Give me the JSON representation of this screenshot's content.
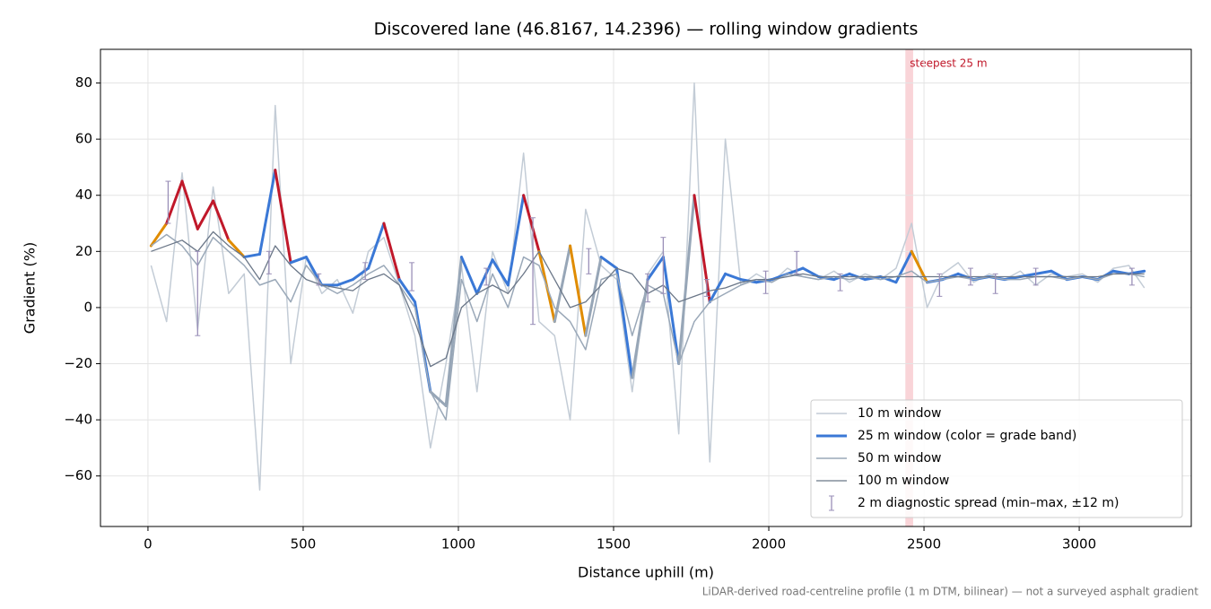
{
  "chart_data": {
    "type": "line",
    "title": "Discovered lane (46.8167, 14.2396) — rolling window gradients",
    "xlabel": "Distance uphill (m)",
    "ylabel": "Gradient (%)",
    "footnote": "LiDAR-derived road-centreline profile (1 m DTM, bilinear) — not a surveyed asphalt gradient",
    "xlim": [
      -153,
      3361
    ],
    "ylim": [
      -78,
      92
    ],
    "xticks": [
      0,
      500,
      1000,
      1500,
      2000,
      2500,
      3000
    ],
    "yticks": [
      {
        "value": -60,
        "label": "−60"
      },
      {
        "value": -40,
        "label": "−40"
      },
      {
        "value": -20,
        "label": "−20"
      },
      0,
      20,
      40,
      60,
      80
    ],
    "grid": true,
    "legend": "lower right",
    "highlight": {
      "label": "steepest 25 m",
      "x": [
        2440,
        2465
      ],
      "color": "#f2a0a8"
    },
    "x": [
      10,
      60,
      110,
      160,
      210,
      260,
      310,
      360,
      410,
      460,
      510,
      560,
      610,
      660,
      710,
      760,
      810,
      860,
      910,
      960,
      1010,
      1060,
      1110,
      1160,
      1210,
      1260,
      1310,
      1360,
      1410,
      1460,
      1510,
      1560,
      1610,
      1660,
      1710,
      1760,
      1810,
      1860,
      1910,
      1960,
      2010,
      2060,
      2110,
      2160,
      2210,
      2260,
      2310,
      2360,
      2410,
      2460,
      2510,
      2560,
      2610,
      2660,
      2710,
      2760,
      2810,
      2860,
      2910,
      2960,
      3010,
      3060,
      3110,
      3160,
      3210
    ],
    "series": [
      {
        "name": "10 m window",
        "color": "#c3ccd6",
        "width": 1.5,
        "values": [
          15,
          -5,
          48,
          -8,
          43,
          5,
          12,
          -65,
          72,
          -20,
          18,
          5,
          10,
          -2,
          20,
          25,
          8,
          -10,
          -50,
          -20,
          15,
          -30,
          20,
          5,
          55,
          -5,
          -10,
          -40,
          35,
          15,
          10,
          -30,
          12,
          20,
          -45,
          80,
          -55,
          60,
          8,
          12,
          9,
          14,
          11,
          10,
          13,
          9,
          12,
          10,
          14,
          30,
          0,
          12,
          16,
          9,
          12,
          10,
          13,
          8,
          12,
          11,
          12,
          9,
          14,
          15,
          7
        ]
      },
      {
        "name": "25 m window (color = grade band)",
        "color": "#3a78d6",
        "width": 3,
        "values": [
          22,
          30,
          45,
          28,
          38,
          24,
          18,
          19,
          49,
          16,
          18,
          8,
          8,
          10,
          14,
          30,
          10,
          2,
          -30,
          -35,
          18,
          5,
          17,
          8,
          40,
          20,
          -5,
          22,
          -10,
          18,
          14,
          -25,
          10,
          18,
          -20,
          40,
          2,
          12,
          10,
          9,
          10,
          12,
          14,
          11,
          10,
          12,
          10,
          11,
          9,
          20,
          9,
          10,
          12,
          10,
          11,
          10,
          11,
          12,
          13,
          10,
          11,
          10,
          13,
          12,
          13
        ],
        "colors": [
          "#e08c00",
          "#c0182a",
          "#c0182a",
          "#c0182a",
          "#c0182a",
          "#e08c00",
          "#3a78d6",
          "#3a78d6",
          "#c0182a",
          "#3a78d6",
          "#3a78d6",
          "#3a78d6",
          "#3a78d6",
          "#3a78d6",
          "#3a78d6",
          "#c0182a",
          "#3a78d6",
          "#3a78d6",
          "#97a6b7",
          "#97a6b7",
          "#3a78d6",
          "#3a78d6",
          "#3a78d6",
          "#3a78d6",
          "#c0182a",
          "#e08c00",
          "#97a6b7",
          "#e08c00",
          "#97a6b7",
          "#3a78d6",
          "#3a78d6",
          "#97a6b7",
          "#3a78d6",
          "#3a78d6",
          "#97a6b7",
          "#c0182a",
          "#3a78d6",
          "#3a78d6",
          "#3a78d6",
          "#3a78d6",
          "#3a78d6",
          "#3a78d6",
          "#3a78d6",
          "#3a78d6",
          "#3a78d6",
          "#3a78d6",
          "#3a78d6",
          "#3a78d6",
          "#3a78d6",
          "#e08c00",
          "#3a78d6",
          "#3a78d6",
          "#3a78d6",
          "#3a78d6",
          "#3a78d6",
          "#3a78d6",
          "#3a78d6",
          "#3a78d6",
          "#3a78d6",
          "#3a78d6",
          "#3a78d6",
          "#3a78d6",
          "#3a78d6",
          "#3a78d6",
          "#3a78d6"
        ]
      },
      {
        "name": "50 m window",
        "color": "#9aa8b8",
        "width": 1.5,
        "values": [
          22,
          26,
          22,
          15,
          25,
          20,
          15,
          8,
          10,
          2,
          15,
          8,
          5,
          8,
          12,
          15,
          8,
          0,
          -30,
          -40,
          10,
          -5,
          12,
          0,
          18,
          15,
          0,
          -5,
          -15,
          10,
          12,
          -10,
          8,
          5,
          -20,
          -5,
          2,
          5,
          8,
          10,
          9,
          12,
          11,
          10,
          11,
          10,
          11,
          10,
          11,
          13,
          9,
          10,
          11,
          10,
          11,
          10,
          10,
          11,
          11,
          10,
          11,
          10,
          12,
          12,
          11
        ]
      },
      {
        "name": "100 m window",
        "color": "#6b7788",
        "width": 1.3,
        "values": [
          20,
          22,
          24,
          20,
          27,
          22,
          18,
          10,
          22,
          15,
          10,
          8,
          7,
          6,
          10,
          12,
          8,
          -5,
          -21,
          -18,
          0,
          5,
          8,
          5,
          12,
          20,
          10,
          0,
          2,
          8,
          14,
          12,
          5,
          8,
          2,
          4,
          6,
          7,
          9,
          10,
          10,
          11,
          12,
          11,
          11,
          11,
          11,
          11,
          11,
          11,
          11,
          11,
          11,
          11,
          11,
          11,
          11,
          11,
          11,
          11,
          11,
          11,
          12,
          12,
          12
        ]
      }
    ],
    "errorbars": {
      "name": "2 m diagnostic spread (min–max, ±12 m)",
      "color": "#9a8fb8",
      "x": [
        65,
        160,
        390,
        550,
        700,
        850,
        1090,
        1240,
        1420,
        1610,
        1660,
        1800,
        1990,
        2090,
        2230,
        2550,
        2650,
        2730,
        2860,
        3170
      ],
      "low": [
        30,
        -10,
        12,
        8,
        10,
        6,
        8,
        -6,
        12,
        2,
        5,
        4,
        5,
        12,
        6,
        4,
        8,
        5,
        8,
        8
      ],
      "high": [
        45,
        20,
        20,
        12,
        16,
        16,
        14,
        32,
        21,
        12,
        25,
        10,
        13,
        20,
        12,
        12,
        14,
        12,
        14,
        14
      ]
    }
  }
}
